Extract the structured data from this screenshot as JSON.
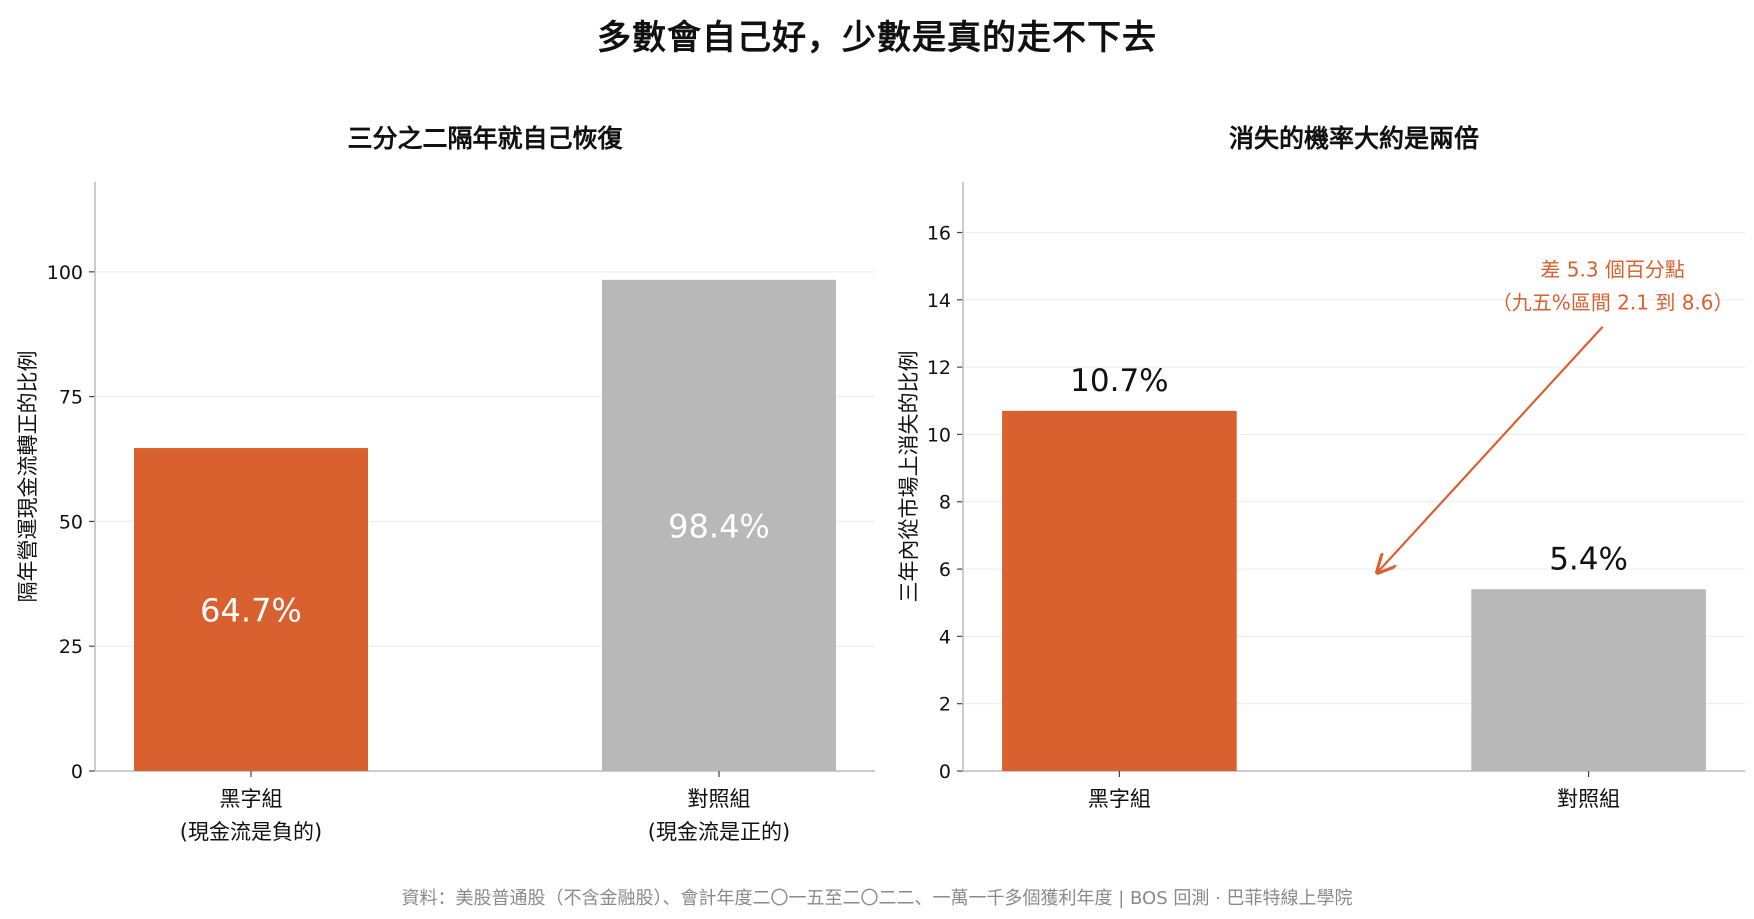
{
  "title": "多數會自己好，少數是真的走不下去",
  "source": "資料：美股普通股（不含金融股）、會計年度二〇一五至二〇二二、一萬一千多個獲利年度 | BOS 回測 · 巴菲特線上學院",
  "colors": {
    "accent": "#D9602F",
    "gray": "#B8B8B8",
    "annotation": "#D9602F",
    "grid": "#ECECEC",
    "axis": "#BBBBBB"
  },
  "chart_data": [
    {
      "type": "bar",
      "title": "三分之二隔年就自己恢復",
      "ylabel": "隔年營運現金流轉正的比例",
      "categories": [
        [
          "黑字組",
          "(現金流是負的)"
        ],
        [
          "對照組",
          "(現金流是正的)"
        ]
      ],
      "values": [
        64.7,
        98.4
      ],
      "value_labels": [
        "64.7%",
        "98.4%"
      ],
      "value_label_position": "inside",
      "bar_colors": [
        "#D9602F",
        "#B8B8B8"
      ],
      "ylim": [
        0,
        118
      ],
      "yticks": [
        0,
        25,
        50,
        75,
        100
      ],
      "grid": true
    },
    {
      "type": "bar",
      "title": "消失的機率大約是兩倍",
      "ylabel": "三年內從市場上消失的比例",
      "categories": [
        [
          "黑字組"
        ],
        [
          "對照組"
        ]
      ],
      "values": [
        10.7,
        5.4
      ],
      "value_labels": [
        "10.7%",
        "5.4%"
      ],
      "value_label_position": "above",
      "bar_colors": [
        "#D9602F",
        "#B8B8B8"
      ],
      "ylim": [
        0,
        17.5
      ],
      "yticks": [
        0,
        2,
        4,
        6,
        8,
        10,
        12,
        14,
        16
      ],
      "grid": true,
      "annotation": {
        "lines": [
          "差 5.3 個百分點",
          "（九五%區間 2.1 到 8.6）"
        ],
        "arrow_from": [
          1.03,
          13.2
        ],
        "arrow_to": [
          0.55,
          5.9
        ]
      }
    }
  ]
}
